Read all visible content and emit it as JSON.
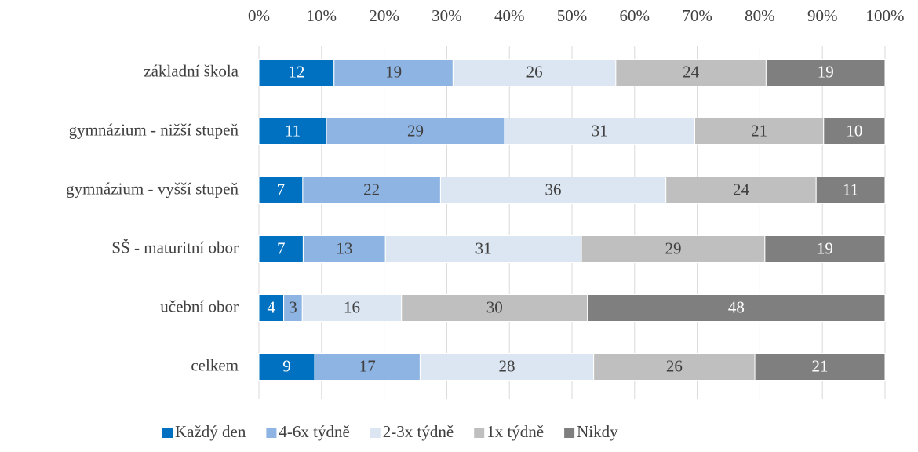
{
  "chart_data": {
    "type": "bar",
    "orientation": "horizontal",
    "stacking": "percent",
    "categories": [
      "základní škola",
      "gymnázium - nižší stupeň",
      "gymnázium - vyšší stupeň",
      "SŠ - maturitní obor",
      "učební obor",
      "celkem"
    ],
    "series": [
      {
        "name": "Každý den",
        "color": "#0070c0",
        "values": [
          12,
          11,
          7,
          7,
          4,
          9
        ]
      },
      {
        "name": "4-6x týdně",
        "color": "#8eb4e3",
        "values": [
          19,
          29,
          22,
          13,
          3,
          17
        ]
      },
      {
        "name": "2-3x týdně",
        "color": "#dce6f2",
        "values": [
          26,
          31,
          36,
          31,
          16,
          28
        ]
      },
      {
        "name": "1x týdně",
        "color": "#bfbfbf",
        "values": [
          24,
          21,
          24,
          29,
          30,
          26
        ]
      },
      {
        "name": "Nikdy",
        "color": "#7f7f7f",
        "values": [
          19,
          10,
          11,
          19,
          48,
          21
        ]
      }
    ],
    "xlim": [
      0,
      100
    ],
    "xticks": [
      {
        "value": 0,
        "label": "0%"
      },
      {
        "value": 10,
        "label": "10%"
      },
      {
        "value": 20,
        "label": "20%"
      },
      {
        "value": 30,
        "label": "30%"
      },
      {
        "value": 40,
        "label": "40%"
      },
      {
        "value": 50,
        "label": "50%"
      },
      {
        "value": 60,
        "label": "60%"
      },
      {
        "value": 70,
        "label": "70%"
      },
      {
        "value": 80,
        "label": "80%"
      },
      {
        "value": 90,
        "label": "90%"
      },
      {
        "value": 100,
        "label": "100%"
      }
    ],
    "grid": true,
    "legend": "bottom"
  }
}
